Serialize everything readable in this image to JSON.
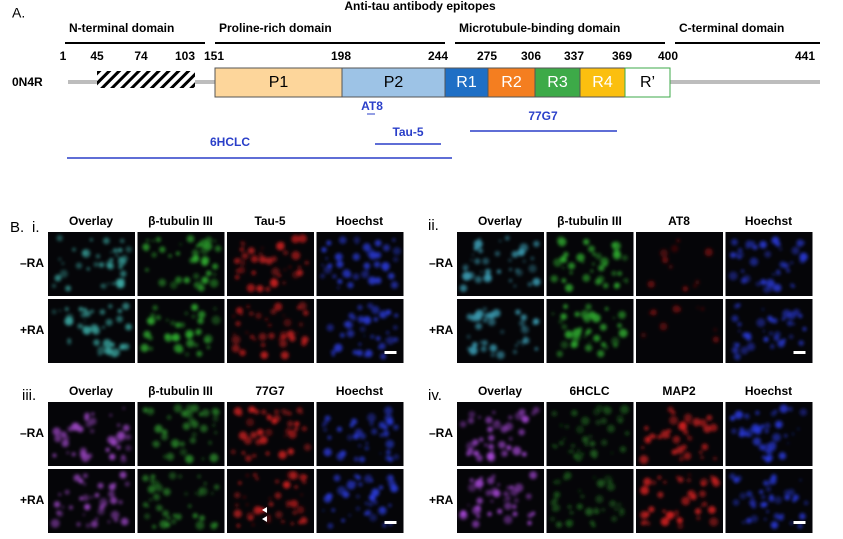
{
  "panel_a": {
    "label": "A.",
    "title": "Anti-tau antibody epitopes",
    "domains": [
      "N-terminal domain",
      "Proline-rich domain",
      "Microtubule-binding domain",
      "C-terminal domain"
    ],
    "positions": [
      1,
      45,
      74,
      103,
      151,
      198,
      244,
      275,
      306,
      337,
      369,
      400,
      441
    ],
    "isoform": "0N4R",
    "regions": [
      "P1",
      "P2",
      "R1",
      "R2",
      "R3",
      "R4",
      "R’"
    ],
    "antibodies": [
      "AT8",
      "Tau-5",
      "77G7",
      "6HCLC"
    ]
  },
  "panel_b": {
    "label": "B.",
    "panels": [
      {
        "label": "i.",
        "columns": [
          "Overlay",
          "β-tubulin III",
          "Tau-5",
          "Hoechst"
        ],
        "rows": [
          "–RA",
          "+RA"
        ]
      },
      {
        "label": "ii.",
        "columns": [
          "Overlay",
          "β-tubulin III",
          "AT8",
          "Hoechst"
        ],
        "rows": [
          "–RA",
          "+RA"
        ]
      },
      {
        "label": "iii.",
        "columns": [
          "Overlay",
          "β-tubulin III",
          "77G7",
          "Hoechst"
        ],
        "rows": [
          "–RA",
          "+RA"
        ]
      },
      {
        "label": "iv.",
        "columns": [
          "Overlay",
          "6HCLC",
          "MAP2",
          "Hoechst"
        ],
        "rows": [
          "–RA",
          "+RA"
        ]
      }
    ]
  }
}
